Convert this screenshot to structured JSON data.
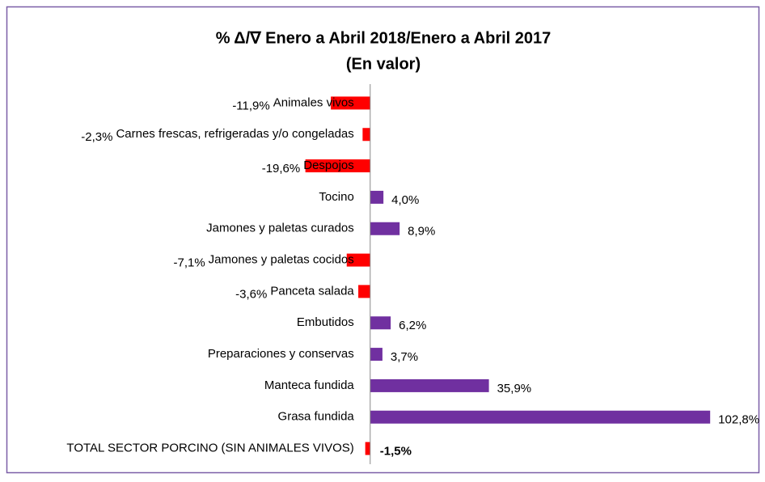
{
  "chart_data": {
    "type": "hbar",
    "title": "% Δ/∇ Enero a Abril 2018/Enero a Abril 2017",
    "subtitle": "(En valor)",
    "categories": [
      "Animales vivos",
      "Carnes frescas, refrigeradas y/o congeladas",
      "Despojos",
      "Tocino",
      "Jamones y paletas curados",
      "Jamones y paletas cocidos",
      "Panceta salada",
      "Embutidos",
      "Preparaciones y conservas",
      "Manteca fundida",
      "Grasa fundida",
      "TOTAL SECTOR PORCINO (SIN ANIMALES VIVOS)"
    ],
    "values": [
      -11.9,
      -2.3,
      -19.6,
      4.0,
      8.9,
      -7.1,
      -3.6,
      6.2,
      3.7,
      35.9,
      102.8,
      -1.5
    ],
    "value_labels": [
      "-11,9%",
      "-2,3%",
      "-19,6%",
      "4,0%",
      "8,9%",
      "-7,1%",
      "-3,6%",
      "6,2%",
      "3,7%",
      "35,9%",
      "102,8%",
      "-1,5%"
    ],
    "positive_color": "#7030a0",
    "negative_color": "#ff0000",
    "xlim": [
      -20,
      103
    ]
  }
}
